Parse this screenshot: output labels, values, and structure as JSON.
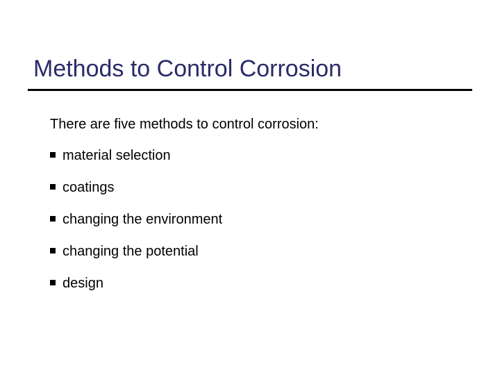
{
  "slide": {
    "title": "Methods to Control Corrosion",
    "title_color": "#2a2a6a",
    "title_fontsize": 34,
    "rule_color": "#000000",
    "rule_width": 3,
    "intro": "There are five methods to control corrosion:",
    "intro_fontsize": 20,
    "bullet_color": "#000000",
    "item_fontsize": 20,
    "items": [
      "material selection",
      "coatings",
      "changing the environment",
      "changing the potential",
      "design"
    ],
    "background_color": "#ffffff"
  }
}
